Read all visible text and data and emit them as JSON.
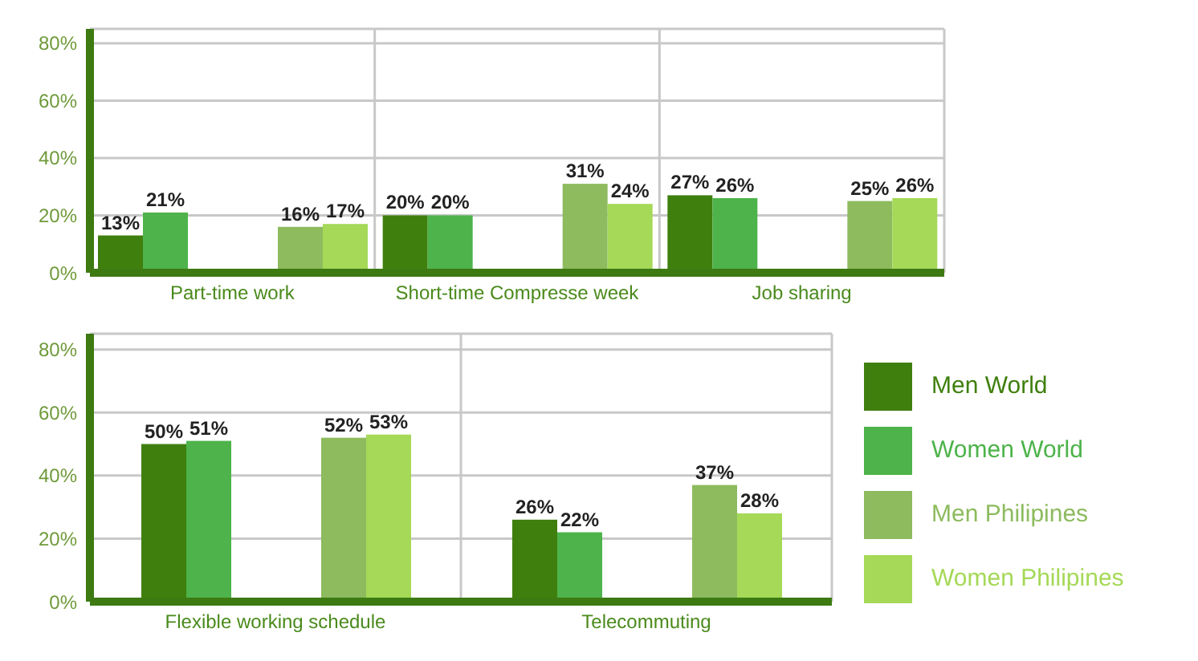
{
  "chart_data": [
    {
      "type": "bar",
      "categories": [
        "Part-time work",
        "Short-time Compresse week",
        "Job sharing"
      ],
      "series": [
        {
          "color": "#3f7f0e",
          "values": [
            13,
            20,
            27
          ],
          "value_labels": [
            "13%",
            "20%",
            "27%"
          ]
        },
        {
          "color": "#4db34a",
          "values": [
            21,
            20,
            26
          ],
          "value_labels": [
            "21%",
            "20%",
            "26%"
          ]
        },
        {
          "color": "#8dbb5e",
          "values": [
            16,
            31,
            25
          ],
          "value_labels": [
            "16%",
            "31%",
            "25%"
          ]
        },
        {
          "color": "#a5d957",
          "values": [
            17,
            24,
            26
          ],
          "value_labels": [
            "17%",
            "24%",
            "26%"
          ]
        }
      ],
      "ylim": [
        0,
        85
      ],
      "yticks": [
        {
          "value": 0,
          "label": "0%"
        },
        {
          "value": 20,
          "label": "20%"
        },
        {
          "value": 40,
          "label": "40%"
        },
        {
          "value": 60,
          "label": "60%"
        },
        {
          "value": 80,
          "label": "80%"
        }
      ],
      "grid": true,
      "legend": false
    },
    {
      "type": "bar",
      "categories": [
        "Flexible working schedule",
        "Telecommuting"
      ],
      "series": [
        {
          "name": "Men World",
          "color": "#3f7f0e",
          "values": [
            50,
            26
          ],
          "value_labels": [
            "50%",
            "26%"
          ]
        },
        {
          "name": "Women World",
          "color": "#4db34a",
          "values": [
            51,
            22
          ],
          "value_labels": [
            "51%",
            "22%"
          ]
        },
        {
          "name": "Men Philipines",
          "color": "#8dbb5e",
          "values": [
            52,
            37
          ],
          "value_labels": [
            "52%",
            "37%"
          ]
        },
        {
          "name": "Women Philipines",
          "color": "#a5d957",
          "values": [
            53,
            28
          ],
          "value_labels": [
            "53%",
            "28%"
          ]
        }
      ],
      "ylim": [
        0,
        85
      ],
      "yticks": [
        {
          "value": 0,
          "label": "0%"
        },
        {
          "value": 20,
          "label": "20%"
        },
        {
          "value": 40,
          "label": "40%"
        },
        {
          "value": 60,
          "label": "60%"
        },
        {
          "value": 80,
          "label": "80%"
        }
      ],
      "grid": true,
      "legend": "right"
    }
  ]
}
